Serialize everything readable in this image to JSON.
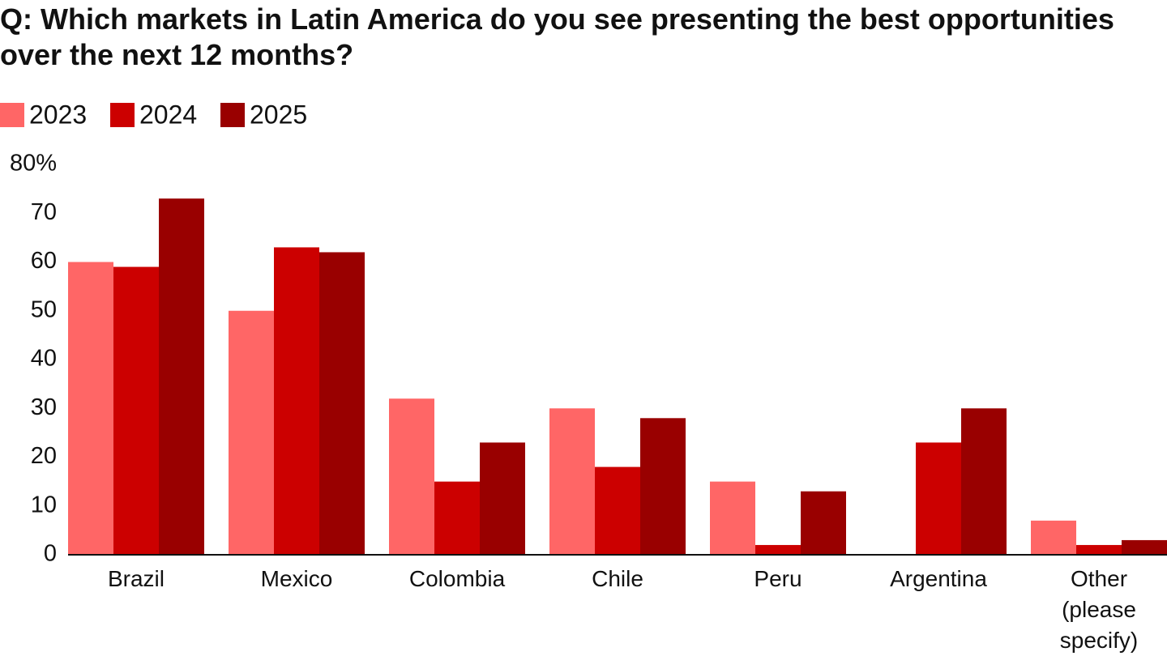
{
  "chart_data": {
    "type": "bar",
    "title": "Q: Which markets in Latin America do you see presenting the best opportunities over the next 12 months?",
    "categories": [
      "Brazil",
      "Mexico",
      "Colombia",
      "Chile",
      "Peru",
      "Argentina",
      "Other (please specify)"
    ],
    "series": [
      {
        "name": "2023",
        "color": "#ff6666",
        "values": [
          60,
          50,
          32,
          30,
          15,
          null,
          7
        ]
      },
      {
        "name": "2024",
        "color": "#cc0000",
        "values": [
          59,
          63,
          15,
          18,
          2,
          23,
          2
        ]
      },
      {
        "name": "2025",
        "color": "#990000",
        "values": [
          73,
          62,
          23,
          28,
          13,
          30,
          3
        ]
      }
    ],
    "ylim": [
      0,
      80
    ],
    "yticks": [
      0,
      10,
      20,
      30,
      40,
      50,
      60,
      70,
      {
        "value": 80,
        "label": "80%"
      }
    ],
    "grid": false
  }
}
